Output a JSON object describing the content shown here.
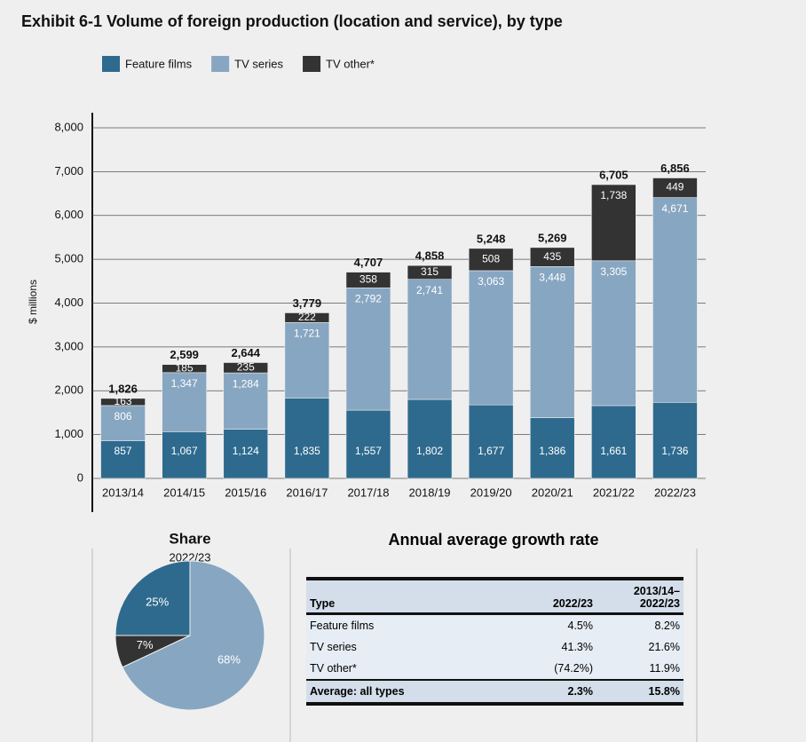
{
  "chart_data": [
    {
      "type": "stacked-bar",
      "title": "Exhibit 6-1  Volume of foreign production (location and service), by type",
      "y_label": "$ millions",
      "categories": [
        "2013/14",
        "2014/15",
        "2015/16",
        "2016/17",
        "2017/18",
        "2018/19",
        "2019/20",
        "2020/21",
        "2021/22",
        "2022/23"
      ],
      "series": [
        {
          "name": "Feature films",
          "color": "#2e6a8e",
          "values": [
            857,
            1067,
            1124,
            1835,
            1557,
            1802,
            1677,
            1386,
            1661,
            1736
          ],
          "value_labels": [
            "857",
            "1,067",
            "1,124",
            "1,835",
            "1,557",
            "1,802",
            "1,677",
            "1,386",
            "1,661",
            "1,736"
          ]
        },
        {
          "name": "TV series",
          "color": "#87a6c2",
          "values": [
            806,
            1347,
            1284,
            1721,
            2792,
            2741,
            3063,
            3448,
            3305,
            4671
          ],
          "value_labels": [
            "806",
            "1,347",
            "1,284",
            "1,721",
            "2,792",
            "2,741",
            "3,063",
            "3,448",
            "3,305",
            "4,671"
          ]
        },
        {
          "name": "TV other*",
          "color": "#333333",
          "values": [
            163,
            185,
            235,
            222,
            358,
            315,
            508,
            435,
            1738,
            449
          ],
          "value_labels": [
            "163",
            "185",
            "235",
            "222",
            "358",
            "315",
            "508",
            "435",
            "1,738",
            "449"
          ]
        }
      ],
      "totals": [
        1826,
        2599,
        2644,
        3779,
        4707,
        4858,
        5248,
        5269,
        6705,
        6856
      ],
      "totals_labels": [
        "1,826",
        "2,599",
        "2,644",
        "3,779",
        "4,707",
        "4,858",
        "5,248",
        "5,269",
        "6,705",
        "6,856"
      ],
      "ylim": [
        0,
        8000
      ],
      "yticks": [
        0,
        {
          "value": 1000,
          "label": "1,000"
        },
        {
          "value": 2000,
          "label": "2,000"
        },
        {
          "value": 3000,
          "label": "3,000"
        },
        {
          "value": 4000,
          "label": "4,000"
        },
        {
          "value": 5000,
          "label": "5,000"
        },
        {
          "value": 6000,
          "label": "6,000"
        },
        {
          "value": 7000,
          "label": "7,000"
        },
        {
          "value": 8000,
          "label": "8,000"
        }
      ],
      "grid": true
    },
    {
      "type": "pie",
      "title": "Share",
      "subtitle": "2022/23",
      "values": [
        25,
        7,
        68
      ],
      "value_labels": [
        "25%",
        "7%",
        "68%"
      ],
      "colors": [
        "#2e6a8e",
        "#333333",
        "#87a6c2"
      ]
    }
  ],
  "table": {
    "title": "Annual average growth rate",
    "header": [
      "Type",
      "2022/23",
      "2013/14–2022/23"
    ],
    "rows": [
      [
        "Feature films",
        "4.5%",
        "8.2%"
      ],
      [
        "TV series",
        "41.3%",
        "21.6%"
      ],
      [
        "TV other*",
        "(74.2%)",
        "11.9%"
      ],
      [
        "Average: all types",
        "2.3%",
        "15.8%"
      ]
    ]
  }
}
